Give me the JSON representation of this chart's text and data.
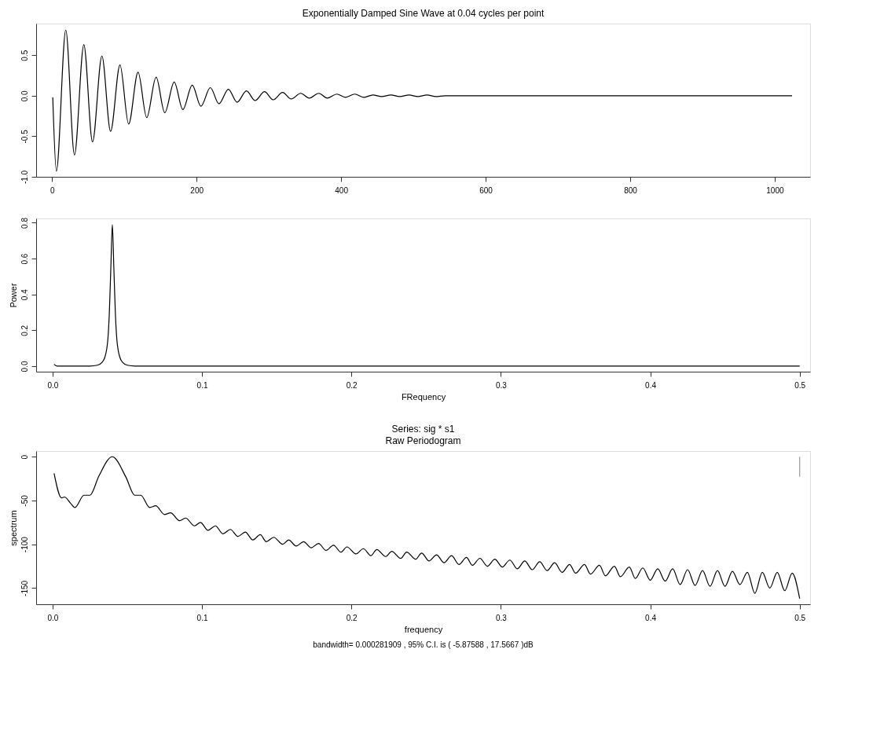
{
  "chart_data": [
    {
      "type": "line",
      "title": "Exponentially Damped Sine Wave at 0.04 cycles per point",
      "x": [
        1,
        6,
        19,
        31,
        44,
        56,
        69,
        81,
        94,
        106,
        119,
        131,
        144,
        156,
        169,
        181,
        194,
        206,
        219,
        231,
        244,
        256,
        269,
        281,
        294,
        306,
        319,
        331,
        344,
        356,
        369,
        381,
        394,
        406,
        419,
        431,
        444,
        456,
        469,
        481,
        494,
        506,
        519,
        531,
        544,
        556,
        600,
        800,
        1024
      ],
      "series": [
        {
          "color": "#000000",
          "values": [
            -0.02,
            -0.93,
            0.81,
            -0.73,
            0.63,
            -0.57,
            0.49,
            -0.44,
            0.38,
            -0.35,
            0.29,
            -0.27,
            0.23,
            -0.21,
            0.17,
            -0.17,
            0.13,
            -0.13,
            0.1,
            -0.1,
            0.08,
            -0.08,
            0.06,
            -0.06,
            0.05,
            -0.05,
            0.04,
            -0.04,
            0.03,
            -0.03,
            0.03,
            -0.03,
            0.02,
            -0.02,
            0.02,
            -0.02,
            0.01,
            -0.01,
            0.01,
            -0.01,
            0.01,
            -0.01,
            0.01,
            -0.01,
            0.0,
            0.0,
            0.0,
            0.0,
            0.0
          ]
        }
      ],
      "xlim": [
        -22,
        1049
      ],
      "ylim": [
        -1.0,
        0.89
      ],
      "xticks": [
        0,
        200,
        400,
        600,
        800,
        1000
      ],
      "yticks": [
        {
          "value": -1.0,
          "label": "-1.0"
        },
        {
          "value": -0.5,
          "label": "-0.5"
        },
        {
          "value": 0.0,
          "label": "0.0"
        },
        {
          "value": 0.5,
          "label": "0.5"
        }
      ]
    },
    {
      "type": "line",
      "xlabel": "FRequency",
      "ylabel": "Power",
      "x": [
        0.001,
        0.003,
        0.005,
        0.025,
        0.03,
        0.033,
        0.035,
        0.037,
        0.038,
        0.039,
        0.04,
        0.041,
        0.042,
        0.043,
        0.045,
        0.047,
        0.05,
        0.055,
        0.5
      ],
      "series": [
        {
          "color": "#000000",
          "values": [
            0.01,
            0.0,
            0.0,
            0.0,
            0.005,
            0.02,
            0.05,
            0.15,
            0.3,
            0.55,
            0.79,
            0.55,
            0.3,
            0.15,
            0.05,
            0.02,
            0.005,
            0.0,
            0.0
          ]
        }
      ],
      "xlim": [
        -0.011,
        0.507
      ],
      "ylim": [
        -0.031,
        0.824
      ],
      "xticks": [
        {
          "value": 0.0,
          "label": "0.0"
        },
        0.1,
        0.2,
        0.3,
        0.4,
        0.5
      ],
      "yticks": [
        {
          "value": 0.0,
          "label": "0.0"
        },
        0.2,
        0.4,
        0.6,
        0.8
      ]
    },
    {
      "type": "line",
      "title": "Series:  sig * s1",
      "subtitle": "Raw Periodogram",
      "xlabel": "frequency",
      "ylabel": "spectrum",
      "annotations": [
        "bandwidth= 0.000281909 , 95% C.I. is ( -5.87588 , 17.5667 )dB"
      ],
      "x": [
        0.001,
        0.006,
        0.008,
        0.012,
        0.015,
        0.021,
        0.025,
        0.031,
        0.04,
        0.049,
        0.055,
        0.059,
        0.065,
        0.069,
        0.075,
        0.079,
        0.085,
        0.089,
        0.095,
        0.099,
        0.104,
        0.109,
        0.114,
        0.119,
        0.124,
        0.129,
        0.134,
        0.139,
        0.143,
        0.148,
        0.154,
        0.158,
        0.163,
        0.168,
        0.173,
        0.178,
        0.183,
        0.188,
        0.193,
        0.197,
        0.203,
        0.208,
        0.213,
        0.217,
        0.223,
        0.227,
        0.233,
        0.237,
        0.243,
        0.247,
        0.252,
        0.257,
        0.262,
        0.267,
        0.272,
        0.277,
        0.281,
        0.286,
        0.291,
        0.296,
        0.301,
        0.306,
        0.311,
        0.316,
        0.321,
        0.326,
        0.331,
        0.336,
        0.341,
        0.346,
        0.35,
        0.356,
        0.36,
        0.366,
        0.37,
        0.376,
        0.38,
        0.386,
        0.39,
        0.395,
        0.4,
        0.405,
        0.41,
        0.415,
        0.42,
        0.425,
        0.43,
        0.435,
        0.44,
        0.445,
        0.45,
        0.455,
        0.46,
        0.465,
        0.47,
        0.475,
        0.48,
        0.485,
        0.49,
        0.495,
        0.5
      ],
      "series": [
        {
          "color": "#000000",
          "values": [
            -19,
            -47,
            -46,
            -53,
            -58,
            -44,
            -44,
            -22,
            0,
            -23,
            -44,
            -44,
            -58,
            -56,
            -66,
            -64,
            -73,
            -70,
            -79,
            -75,
            -84,
            -79,
            -88,
            -83,
            -91,
            -86,
            -95,
            -89,
            -97,
            -92,
            -100,
            -95,
            -102,
            -97,
            -104,
            -99,
            -107,
            -101,
            -109,
            -103,
            -111,
            -105,
            -113,
            -106,
            -114,
            -108,
            -116,
            -109,
            -117,
            -110,
            -119,
            -112,
            -121,
            -113,
            -123,
            -115,
            -124,
            -116,
            -125,
            -117,
            -126,
            -118,
            -128,
            -119,
            -129,
            -120,
            -130,
            -121,
            -132,
            -123,
            -133,
            -123,
            -134,
            -124,
            -136,
            -125,
            -137,
            -126,
            -139,
            -127,
            -141,
            -128,
            -142,
            -128,
            -146,
            -129,
            -147,
            -130,
            -148,
            -130,
            -148,
            -131,
            -146,
            -132,
            -156,
            -132,
            -150,
            -132,
            -153,
            -133,
            -162
          ]
        },
        {
          "type": "line",
          "color": "#999999",
          "x": [
            0.5,
            0.5
          ],
          "values": [
            0,
            -23
          ]
        }
      ],
      "xlim": [
        -0.011,
        0.507
      ],
      "ylim": [
        -168.5,
        6.5
      ],
      "xticks": [
        {
          "value": 0.0,
          "label": "0.0"
        },
        0.1,
        0.2,
        0.3,
        0.4,
        0.5
      ],
      "yticks": [
        0,
        -50,
        -100,
        -150
      ]
    }
  ]
}
